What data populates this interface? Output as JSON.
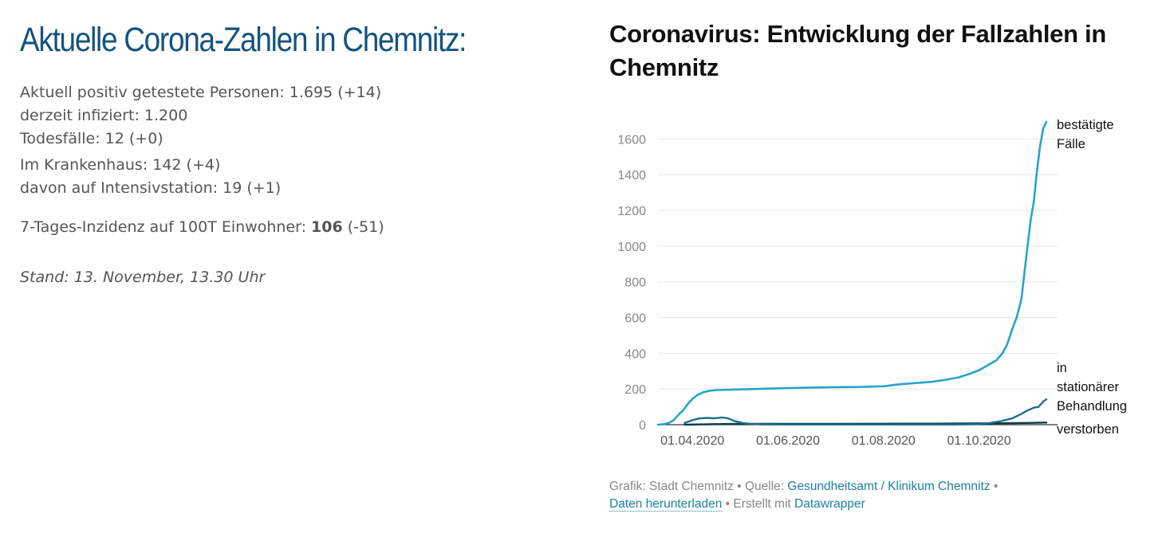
{
  "left": {
    "heading": "Aktuelle Corona-Zahlen in Chemnitz:",
    "line_positive": "Aktuell positiv getestete Personen: 1.695 (+14)",
    "line_infected": "derzeit infiziert: 1.200",
    "line_deaths": "Todesfälle: 12 (+0)",
    "line_hospital": "Im Krankenhaus: 142 (+4)",
    "line_icu": "davon auf Intensivstation: 19 (+1)",
    "incidence_label": "7-Tages-Inzidenz auf 100T Einwohner: ",
    "incidence_value": "106",
    "incidence_change": " (-51)",
    "stand": "Stand: 13. November, 13.30 Uhr"
  },
  "chart_title": "Coronavirus: Entwicklung der Fallzahlen in Chemnitz",
  "footer": {
    "grafik": "Grafik: Stadt Chemnitz",
    "sep1": " • ",
    "quelle_label": "Quelle: ",
    "quelle_link": "Gesundheitsamt / Klinikum Chemnitz",
    "sep2": " •",
    "download": "Daten herunterladen",
    "sep3": " • Erstellt mit ",
    "datawrapper": "Datawrapper"
  },
  "colors": {
    "confirmed": "#28a3cb",
    "hospital": "#1d6f8c",
    "deaths": "#0d3b4c",
    "grid": "#e6e6e6",
    "axis_text": "#888888"
  },
  "chart_data": {
    "type": "line",
    "title": "Coronavirus: Entwicklung der Fallzahlen in Chemnitz",
    "xlabel": "",
    "ylabel": "",
    "ylim": [
      0,
      1700
    ],
    "y_ticks": [
      0,
      200,
      400,
      600,
      800,
      1000,
      1200,
      1400,
      1600
    ],
    "x_range": [
      "2020-03-10",
      "2020-11-13"
    ],
    "x_ticks": [
      {
        "date": "2020-04-01",
        "label": "01.04.2020"
      },
      {
        "date": "2020-06-01",
        "label": "01.06.2020"
      },
      {
        "date": "2020-08-01",
        "label": "01.08.2020"
      },
      {
        "date": "2020-10-01",
        "label": "01.10.2020"
      }
    ],
    "grid": true,
    "series": [
      {
        "name": "bestätigte Fälle",
        "label_lines": [
          "bestätigte",
          "Fälle"
        ],
        "color_key": "confirmed",
        "points": [
          [
            "2020-03-10",
            0
          ],
          [
            "2020-03-14",
            3
          ],
          [
            "2020-03-17",
            10
          ],
          [
            "2020-03-20",
            25
          ],
          [
            "2020-03-23",
            55
          ],
          [
            "2020-03-26",
            80
          ],
          [
            "2020-03-29",
            115
          ],
          [
            "2020-04-01",
            145
          ],
          [
            "2020-04-04",
            165
          ],
          [
            "2020-04-08",
            182
          ],
          [
            "2020-04-12",
            190
          ],
          [
            "2020-04-17",
            194
          ],
          [
            "2020-04-25",
            196
          ],
          [
            "2020-05-05",
            198
          ],
          [
            "2020-05-20",
            202
          ],
          [
            "2020-06-01",
            205
          ],
          [
            "2020-06-15",
            208
          ],
          [
            "2020-07-01",
            210
          ],
          [
            "2020-07-15",
            211
          ],
          [
            "2020-08-01",
            215
          ],
          [
            "2020-08-10",
            225
          ],
          [
            "2020-08-20",
            232
          ],
          [
            "2020-09-01",
            240
          ],
          [
            "2020-09-10",
            252
          ],
          [
            "2020-09-18",
            265
          ],
          [
            "2020-09-25",
            285
          ],
          [
            "2020-10-01",
            305
          ],
          [
            "2020-10-06",
            330
          ],
          [
            "2020-10-12",
            360
          ],
          [
            "2020-10-16",
            400
          ],
          [
            "2020-10-19",
            450
          ],
          [
            "2020-10-22",
            530
          ],
          [
            "2020-10-25",
            600
          ],
          [
            "2020-10-28",
            700
          ],
          [
            "2020-10-30",
            850
          ],
          [
            "2020-11-01",
            1000
          ],
          [
            "2020-11-03",
            1150
          ],
          [
            "2020-11-05",
            1250
          ],
          [
            "2020-11-07",
            1420
          ],
          [
            "2020-11-09",
            1560
          ],
          [
            "2020-11-11",
            1660
          ],
          [
            "2020-11-13",
            1695
          ]
        ]
      },
      {
        "name": "in stationärer Behandlung",
        "label_lines": [
          "in",
          "stationärer",
          "Behandlung"
        ],
        "color_key": "hospital",
        "points": [
          [
            "2020-03-27",
            10
          ],
          [
            "2020-04-01",
            25
          ],
          [
            "2020-04-05",
            35
          ],
          [
            "2020-04-10",
            38
          ],
          [
            "2020-04-15",
            36
          ],
          [
            "2020-04-20",
            40
          ],
          [
            "2020-04-24",
            35
          ],
          [
            "2020-04-28",
            20
          ],
          [
            "2020-05-03",
            10
          ],
          [
            "2020-05-08",
            5
          ],
          [
            "2020-05-15",
            2
          ],
          [
            "2020-06-01",
            1
          ],
          [
            "2020-08-01",
            1
          ],
          [
            "2020-09-15",
            1
          ],
          [
            "2020-10-01",
            3
          ],
          [
            "2020-10-08",
            10
          ],
          [
            "2020-10-15",
            20
          ],
          [
            "2020-10-22",
            35
          ],
          [
            "2020-10-28",
            60
          ],
          [
            "2020-11-01",
            80
          ],
          [
            "2020-11-05",
            95
          ],
          [
            "2020-11-08",
            100
          ],
          [
            "2020-11-11",
            130
          ],
          [
            "2020-11-13",
            142
          ]
        ]
      },
      {
        "name": "verstorben",
        "label_lines": [
          "verstorben"
        ],
        "color_key": "deaths",
        "points": [
          [
            "2020-03-27",
            0
          ],
          [
            "2020-04-15",
            3
          ],
          [
            "2020-05-01",
            5
          ],
          [
            "2020-07-01",
            5
          ],
          [
            "2020-09-01",
            6
          ],
          [
            "2020-10-15",
            8
          ],
          [
            "2020-11-01",
            10
          ],
          [
            "2020-11-13",
            12
          ]
        ]
      }
    ]
  }
}
